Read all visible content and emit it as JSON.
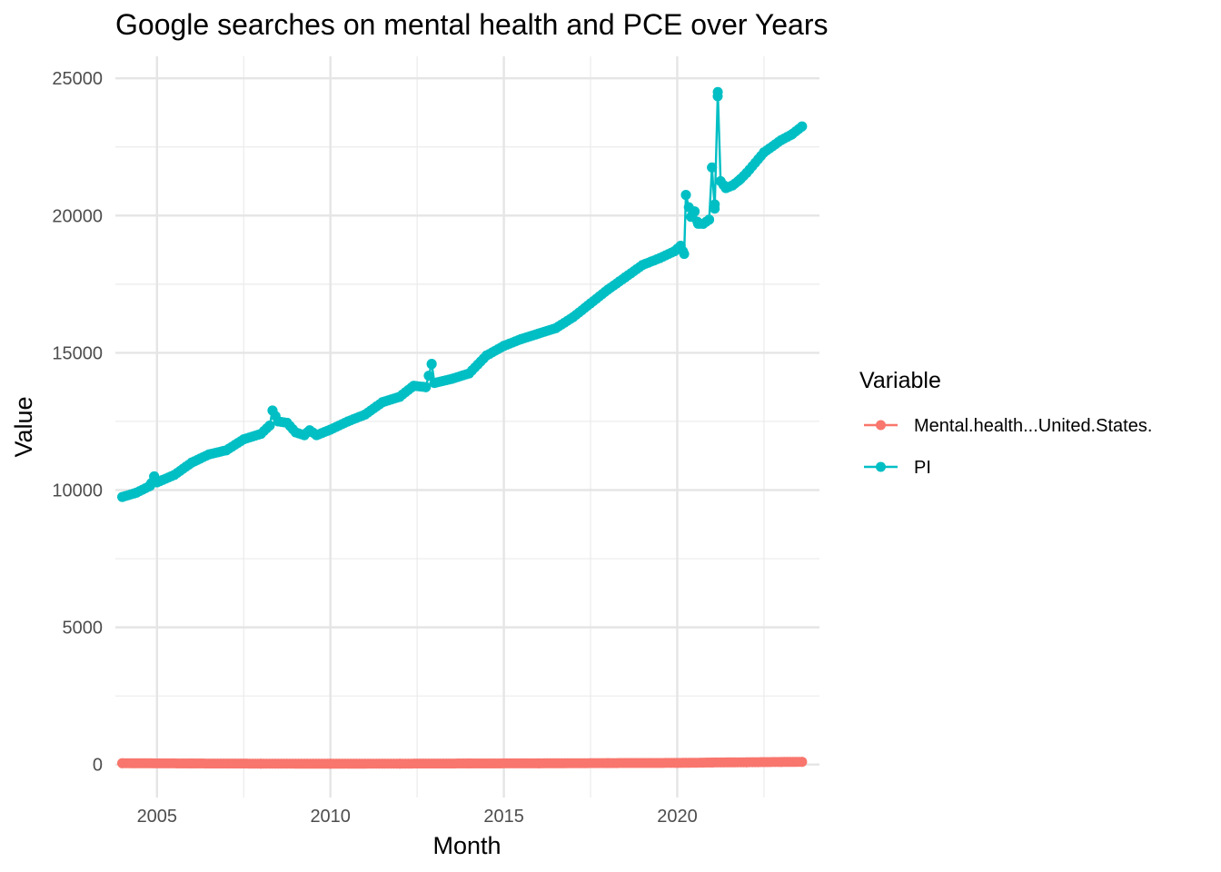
{
  "chart_data": {
    "type": "line",
    "title": "Google searches on mental health and PCE over Years",
    "xlabel": "Month",
    "ylabel": "Value",
    "xlim": [
      2003.8,
      2024.1
    ],
    "ylim": [
      -1200,
      25800
    ],
    "x_ticks": [
      2005,
      2010,
      2015,
      2020
    ],
    "x_tick_labels": [
      "2005",
      "2010",
      "2015",
      "2020"
    ],
    "y_ticks": [
      0,
      5000,
      10000,
      15000,
      20000,
      25000
    ],
    "y_tick_labels": [
      "0",
      "5000",
      "10000",
      "15000",
      "20000",
      "25000"
    ],
    "grid": true,
    "legend": {
      "title": "Variable",
      "position": "right"
    },
    "series": [
      {
        "name": "Mental.health...United.States.",
        "color": "#F8766D",
        "x": [
          2004.0,
          2006.0,
          2008.0,
          2010.0,
          2012.0,
          2014.0,
          2016.0,
          2018.0,
          2020.0,
          2021.0,
          2022.0,
          2023.0,
          2023.6
        ],
        "y": [
          50,
          40,
          35,
          30,
          35,
          40,
          45,
          55,
          60,
          75,
          85,
          95,
          100
        ]
      },
      {
        "name": "PI",
        "color": "#00BFC4",
        "x": [
          2004.0,
          2004.4,
          2004.8,
          2004.92,
          2005.0,
          2005.5,
          2006.0,
          2006.5,
          2007.0,
          2007.5,
          2008.0,
          2008.25,
          2008.33,
          2008.5,
          2008.75,
          2009.0,
          2009.25,
          2009.4,
          2009.6,
          2010.0,
          2010.5,
          2011.0,
          2011.5,
          2012.0,
          2012.4,
          2012.75,
          2012.92,
          2013.0,
          2013.5,
          2014.0,
          2014.5,
          2015.0,
          2015.5,
          2016.0,
          2016.5,
          2017.0,
          2017.5,
          2018.0,
          2018.5,
          2019.0,
          2019.5,
          2019.92,
          2020.1,
          2020.2,
          2020.25,
          2020.4,
          2020.5,
          2020.6,
          2020.75,
          2020.92,
          2021.0,
          2021.08,
          2021.17,
          2021.25,
          2021.4,
          2021.6,
          2021.8,
          2022.0,
          2022.5,
          2023.0,
          2023.3,
          2023.6
        ],
        "y": [
          9750,
          9900,
          10150,
          10500,
          10280,
          10550,
          11000,
          11300,
          11450,
          11850,
          12050,
          12350,
          12900,
          12500,
          12450,
          12100,
          12000,
          12180,
          12000,
          12200,
          12500,
          12750,
          13200,
          13400,
          13800,
          13750,
          14600,
          13900,
          14050,
          14250,
          14900,
          15250,
          15500,
          15700,
          15900,
          16300,
          16800,
          17300,
          17750,
          18200,
          18450,
          18700,
          18900,
          18600,
          20750,
          19950,
          20150,
          19700,
          19700,
          19850,
          21750,
          20250,
          24500,
          21250,
          21000,
          21100,
          21300,
          21550,
          22300,
          22750,
          22950,
          23250
        ]
      }
    ]
  }
}
